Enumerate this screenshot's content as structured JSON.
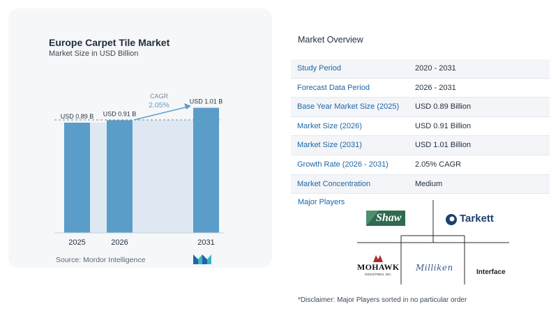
{
  "chart_data": {
    "type": "bar",
    "title": "Europe Carpet Tile Market",
    "subtitle": "Market Size in USD Billion",
    "categories": [
      "2025",
      "2026",
      "2031"
    ],
    "values": [
      0.89,
      0.91,
      1.01
    ],
    "data_labels": [
      "USD 0.89 B",
      "USD 0.91 B",
      "USD 1.01 B"
    ],
    "annotation": {
      "label": "CAGR",
      "value": "2.05%"
    },
    "bar_color": "#5b9dc9",
    "ylim": [
      0,
      1.1
    ],
    "grid": false
  },
  "source": {
    "label": "Source:",
    "name": "Mordor Intelligence"
  },
  "overview": {
    "title": "Market Overview",
    "rows": [
      {
        "label": "Study Period",
        "value": "2020 - 2031"
      },
      {
        "label": "Forecast Data Period",
        "value": "2026 - 2031"
      },
      {
        "label": "Base Year Market Size (2025)",
        "value": "USD 0.89 Billion"
      },
      {
        "label": "Market Size (2026)",
        "value": "USD 0.91 Billion"
      },
      {
        "label": "Market Size (2031)",
        "value": "USD 1.01 Billion"
      },
      {
        "label": "Growth Rate (2026 - 2031)",
        "value": "2.05% CAGR"
      },
      {
        "label": "Market Concentration",
        "value": "Medium"
      }
    ]
  },
  "players": {
    "title": "Major Players",
    "logos": [
      "Shaw",
      "Tarkett",
      "MOHAWK",
      "Milliken",
      "Interface"
    ],
    "mohawk_sub": "INDUSTRIES, INC."
  },
  "disclaimer": "*Disclaimer: Major Players sorted in no particular order",
  "colors": {
    "accent": "#1b66a6",
    "bar": "#5b9dc9",
    "band": "#dde8f2",
    "dark": "#1f2d3d"
  }
}
